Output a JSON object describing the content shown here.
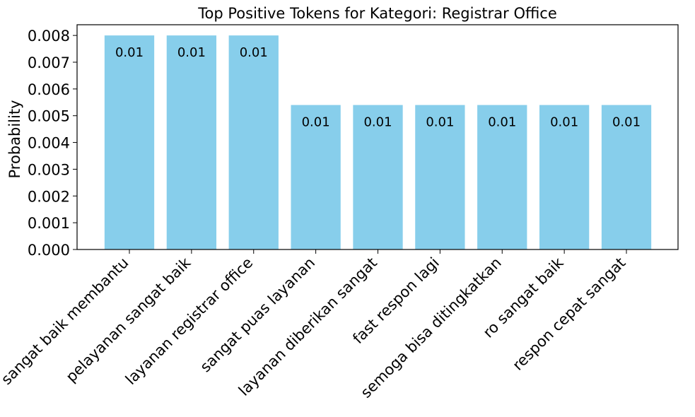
{
  "chart_data": {
    "type": "bar",
    "title": "Top Positive Tokens for Kategori: Registrar Office",
    "xlabel": "",
    "ylabel": "Probability",
    "categories": [
      "sangat baik membantu",
      "pelayanan sangat baik",
      "layanan registrar office",
      "sangat puas layanan",
      "layanan diberikan sangat",
      "fast respon lagi",
      "semoga bisa ditingkatkan",
      "ro sangat baik",
      "respon cepat sangat"
    ],
    "values": [
      0.008,
      0.008,
      0.008,
      0.0054,
      0.0054,
      0.0054,
      0.0054,
      0.0054,
      0.0054
    ],
    "data_labels": [
      "0.01",
      "0.01",
      "0.01",
      "0.01",
      "0.01",
      "0.01",
      "0.01",
      "0.01",
      "0.01"
    ],
    "ylim": [
      0,
      0.0084
    ],
    "yticks": [
      "0.000",
      "0.001",
      "0.002",
      "0.003",
      "0.004",
      "0.005",
      "0.006",
      "0.007",
      "0.008"
    ],
    "bar_color": "#87ceeb",
    "grid": false,
    "legend": "none"
  }
}
